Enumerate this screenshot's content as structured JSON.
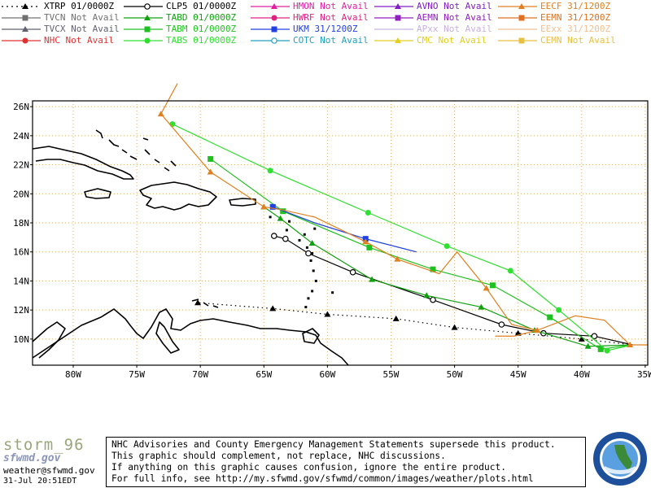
{
  "legend": [
    {
      "model": "XTRP",
      "status": "01/0000Z",
      "color": "#000000",
      "marker": "triangle",
      "dotted": true,
      "col": 0,
      "row": 0
    },
    {
      "model": "TVCN",
      "status": "Not Avail",
      "color": "#707070",
      "marker": "square",
      "col": 0,
      "row": 1
    },
    {
      "model": "TVCX",
      "status": "Not Avail",
      "color": "#606070",
      "marker": "triangle",
      "col": 0,
      "row": 2
    },
    {
      "model": "NHC",
      "status": "Not Avail",
      "color": "#e03030",
      "marker": "circle",
      "col": 0,
      "row": 3
    },
    {
      "model": "CLP5",
      "status": "01/0000Z",
      "color": "#000000",
      "marker": "open-circle",
      "col": 1,
      "row": 0
    },
    {
      "model": "TABD",
      "status": "01/0000Z",
      "color": "#10a010",
      "marker": "triangle",
      "col": 1,
      "row": 1
    },
    {
      "model": "TABM",
      "status": "01/0000Z",
      "color": "#20c020",
      "marker": "square",
      "col": 1,
      "row": 2
    },
    {
      "model": "TABS",
      "status": "01/0000Z",
      "color": "#30e030",
      "marker": "circle",
      "col": 1,
      "row": 3
    },
    {
      "model": "HMON",
      "status": "Not Avail",
      "color": "#e020a0",
      "marker": "triangle",
      "col": 2,
      "row": 0
    },
    {
      "model": "HWRF",
      "status": "Not Avail",
      "color": "#e02080",
      "marker": "circle",
      "col": 2,
      "row": 1
    },
    {
      "model": "UKM",
      "status": "31/1200Z",
      "color": "#2040e0",
      "marker": "square",
      "col": 2,
      "row": 2
    },
    {
      "model": "COTC",
      "status": "Not Avail",
      "color": "#20a0c0",
      "marker": "open-circle",
      "col": 2,
      "row": 3
    },
    {
      "model": "AVNO",
      "status": "Not Avail",
      "color": "#8020c0",
      "marker": "triangle",
      "col": 3,
      "row": 0
    },
    {
      "model": "AEMN",
      "status": "Not Avail",
      "color": "#9020c0",
      "marker": "square",
      "col": 3,
      "row": 1
    },
    {
      "model": "APxx",
      "status": "Not Avail",
      "color": "#c8b0e0",
      "marker": "line",
      "col": 3,
      "row": 2
    },
    {
      "model": "CMC",
      "status": "Not Avail",
      "color": "#e0d020",
      "marker": "triangle",
      "col": 3,
      "row": 3
    },
    {
      "model": "EECF",
      "status": "31/1200Z",
      "color": "#e08020",
      "marker": "triangle",
      "col": 4,
      "row": 0
    },
    {
      "model": "EEMN",
      "status": "31/1200Z",
      "color": "#e07020",
      "marker": "square",
      "col": 4,
      "row": 1
    },
    {
      "model": "EExx",
      "status": "31/1200Z",
      "color": "#f0c090",
      "marker": "line",
      "col": 4,
      "row": 2
    },
    {
      "model": "CEMN",
      "status": "Not Avail",
      "color": "#e8c040",
      "marker": "square",
      "col": 4,
      "row": 3
    }
  ],
  "map": {
    "lat_labels": [
      "26N",
      "24N",
      "22N",
      "20N",
      "18N",
      "16N",
      "14N",
      "12N",
      "10N"
    ],
    "lat_values": [
      26,
      24,
      22,
      20,
      18,
      16,
      14,
      12,
      10
    ],
    "lon_labels": [
      "80W",
      "75W",
      "70W",
      "65W",
      "60W",
      "55W",
      "50W",
      "45W",
      "40W",
      "35W"
    ],
    "lon_values": [
      -80,
      -75,
      -70,
      -65,
      -60,
      -55,
      -50,
      -45,
      -40,
      -35
    ],
    "lon_range": [
      -83.2,
      -34.8
    ],
    "lat_range": [
      8.2,
      26.4
    ]
  },
  "tracks": [
    {
      "model": "XTRP",
      "color": "#000000",
      "marker": "triangle",
      "dotted": true,
      "points": [
        [
          -36,
          9.6
        ],
        [
          -40,
          10.0
        ],
        [
          -45,
          10.4
        ],
        [
          -50,
          10.8
        ],
        [
          -54.6,
          11.4
        ],
        [
          -60,
          11.7
        ],
        [
          -64.3,
          12.1
        ],
        [
          -70.2,
          12.5
        ]
      ]
    },
    {
      "model": "CLP5",
      "color": "#000000",
      "marker": "open-circle",
      "points": [
        [
          -36,
          9.6
        ],
        [
          -39,
          10.2
        ],
        [
          -43,
          10.4
        ],
        [
          -46.3,
          11.0
        ],
        [
          -51.7,
          12.7
        ],
        [
          -58,
          14.6
        ],
        [
          -61.5,
          15.9
        ],
        [
          -63.3,
          16.9
        ],
        [
          -64.2,
          17.1
        ]
      ]
    },
    {
      "model": "TABD",
      "color": "#10a010",
      "marker": "triangle",
      "points": [
        [
          -36,
          9.6
        ],
        [
          -39.5,
          9.5
        ],
        [
          -43.7,
          10.6
        ],
        [
          -47.9,
          12.2
        ],
        [
          -52.2,
          13.0
        ],
        [
          -56.5,
          14.1
        ],
        [
          -61.2,
          16.6
        ],
        [
          -63.7,
          18.3
        ],
        [
          -65,
          19.1
        ]
      ]
    },
    {
      "model": "TABM",
      "color": "#20c020",
      "marker": "square",
      "points": [
        [
          -36,
          9.6
        ],
        [
          -38.5,
          9.3
        ],
        [
          -42.5,
          11.5
        ],
        [
          -47,
          13.7
        ],
        [
          -51.7,
          14.8
        ],
        [
          -56.7,
          16.3
        ],
        [
          -63.5,
          18.8
        ],
        [
          -69.2,
          22.4
        ]
      ]
    },
    {
      "model": "TABS",
      "color": "#30e030",
      "marker": "circle",
      "points": [
        [
          -36,
          9.6
        ],
        [
          -38,
          9.2
        ],
        [
          -41.8,
          12.0
        ],
        [
          -45.6,
          14.7
        ],
        [
          -50.6,
          16.4
        ],
        [
          -56.8,
          18.7
        ],
        [
          -64.5,
          21.6
        ],
        [
          -72.2,
          24.8
        ]
      ]
    },
    {
      "model": "UKM",
      "color": "#2040e0",
      "marker": "square",
      "points": [
        [
          -53,
          16.0
        ],
        [
          -57,
          16.9
        ],
        [
          -61,
          18.0
        ],
        [
          -64.3,
          19.1
        ]
      ],
      "marks": [
        1,
        3
      ]
    },
    {
      "model": "EECF",
      "color": "#e08020",
      "marker": "triangle",
      "points": [
        [
          -34.8,
          9.6
        ],
        [
          -36.2,
          9.6
        ],
        [
          -38.2,
          11.3
        ],
        [
          -40.5,
          11.6
        ],
        [
          -43.5,
          10.6
        ],
        [
          -45.5,
          11.0
        ],
        [
          -47.5,
          13.5
        ],
        [
          -49.8,
          16.0
        ],
        [
          -51.2,
          14.5
        ],
        [
          -54.5,
          15.5
        ],
        [
          -57,
          16.7
        ],
        [
          -61,
          18.4
        ],
        [
          -63.6,
          18.9
        ],
        [
          -65,
          19.1
        ],
        [
          -69.2,
          21.5
        ],
        [
          -73.1,
          25.5
        ],
        [
          -71.8,
          27.6
        ]
      ],
      "marks": [
        1,
        4,
        6,
        9,
        10,
        13,
        14,
        15
      ]
    },
    {
      "model": "EECF-branch",
      "color": "#e08020",
      "marker": "none",
      "points": [
        [
          -43.5,
          10.6
        ],
        [
          -45.3,
          10.2
        ],
        [
          -46.8,
          10.2
        ]
      ]
    }
  ],
  "footer": {
    "logo_line1": "storm_96",
    "logo_line2": "sfwmd.gov",
    "contact": "weather@sfwmd.gov",
    "timestamp": "31-Jul 20:51EDT",
    "disclaimer": [
      "NHC Advisories and County Emergency Management Statements supersede this product.",
      "This graphic should complement, not replace, NHC discussions.",
      "If anything on this graphic causes confusion, ignore the entire product.",
      "For full info, see  http://my.sfwmd.gov/sfwmd/common/images/weather/plots.html"
    ]
  }
}
